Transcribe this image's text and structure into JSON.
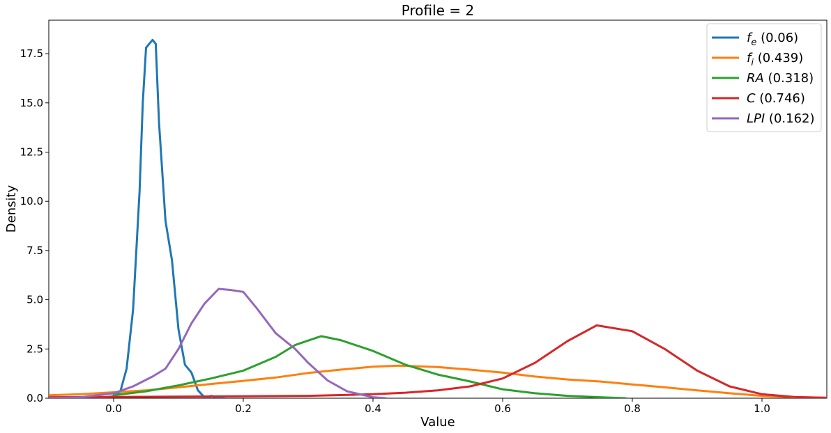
{
  "chart_data": {
    "type": "line",
    "title": "Profile = 2",
    "xlabel": "Value",
    "ylabel": "Density",
    "xlim": [
      -0.1,
      1.1
    ],
    "ylim": [
      0,
      19.2
    ],
    "x_ticks": [
      0.0,
      0.2,
      0.4,
      0.6,
      0.8,
      1.0
    ],
    "x_tick_labels": [
      "0.0",
      "0.2",
      "0.4",
      "0.6",
      "0.8",
      "1.0"
    ],
    "y_ticks": [
      0.0,
      2.5,
      5.0,
      7.5,
      10.0,
      12.5,
      15.0,
      17.5
    ],
    "y_tick_labels": [
      "0.0",
      "2.5",
      "5.0",
      "7.5",
      "10.0",
      "12.5",
      "15.0",
      "17.5"
    ],
    "grid": false,
    "legend_position": "top-right",
    "series": [
      {
        "name": "f_e (0.06)",
        "legend_var": "f",
        "legend_sub": "e",
        "legend_value": "(0.06)",
        "color": "#1f77b4",
        "points": [
          [
            -0.1,
            0
          ],
          [
            -0.02,
            0.02
          ],
          [
            0.0,
            0.1
          ],
          [
            0.01,
            0.3
          ],
          [
            0.02,
            1.5
          ],
          [
            0.03,
            4.5
          ],
          [
            0.04,
            10.5
          ],
          [
            0.045,
            15.0
          ],
          [
            0.05,
            17.8
          ],
          [
            0.055,
            18.0
          ],
          [
            0.06,
            18.2
          ],
          [
            0.065,
            18.0
          ],
          [
            0.07,
            14.0
          ],
          [
            0.08,
            9.0
          ],
          [
            0.09,
            7.0
          ],
          [
            0.1,
            3.5
          ],
          [
            0.11,
            1.7
          ],
          [
            0.12,
            1.3
          ],
          [
            0.13,
            0.4
          ],
          [
            0.14,
            0.05
          ],
          [
            0.145,
            0.0
          ],
          [
            0.15,
            0.12
          ],
          [
            0.16,
            0.02
          ],
          [
            0.17,
            0.0
          ]
        ]
      },
      {
        "name": "f_i (0.439)",
        "legend_var": "f",
        "legend_sub": "i",
        "legend_value": "(0.439)",
        "color": "#ff7f0e",
        "points": [
          [
            -0.1,
            0.15
          ],
          [
            -0.05,
            0.2
          ],
          [
            0.0,
            0.3
          ],
          [
            0.05,
            0.4
          ],
          [
            0.1,
            0.55
          ],
          [
            0.15,
            0.72
          ],
          [
            0.2,
            0.88
          ],
          [
            0.25,
            1.05
          ],
          [
            0.3,
            1.28
          ],
          [
            0.35,
            1.45
          ],
          [
            0.4,
            1.6
          ],
          [
            0.44,
            1.65
          ],
          [
            0.5,
            1.58
          ],
          [
            0.55,
            1.45
          ],
          [
            0.6,
            1.3
          ],
          [
            0.65,
            1.1
          ],
          [
            0.7,
            0.95
          ],
          [
            0.75,
            0.85
          ],
          [
            0.8,
            0.7
          ],
          [
            0.85,
            0.55
          ],
          [
            0.9,
            0.4
          ],
          [
            0.95,
            0.25
          ],
          [
            1.0,
            0.12
          ],
          [
            1.05,
            0.05
          ],
          [
            1.1,
            0.02
          ]
        ]
      },
      {
        "name": "RA (0.318)",
        "legend_var": "RA",
        "legend_sub": "",
        "legend_value": "(0.318)",
        "color": "#2ca02c",
        "points": [
          [
            0.0,
            0.15
          ],
          [
            0.05,
            0.35
          ],
          [
            0.1,
            0.65
          ],
          [
            0.15,
            1.0
          ],
          [
            0.2,
            1.4
          ],
          [
            0.25,
            2.1
          ],
          [
            0.28,
            2.7
          ],
          [
            0.32,
            3.15
          ],
          [
            0.35,
            2.95
          ],
          [
            0.4,
            2.4
          ],
          [
            0.45,
            1.7
          ],
          [
            0.5,
            1.2
          ],
          [
            0.55,
            0.85
          ],
          [
            0.6,
            0.45
          ],
          [
            0.65,
            0.25
          ],
          [
            0.7,
            0.12
          ],
          [
            0.75,
            0.05
          ],
          [
            0.79,
            0.0
          ]
        ]
      },
      {
        "name": "C (0.746)",
        "legend_var": "C",
        "legend_sub": "",
        "legend_value": "(0.746)",
        "color": "#d62728",
        "points": [
          [
            -0.1,
            0.05
          ],
          [
            0.0,
            0.06
          ],
          [
            0.1,
            0.08
          ],
          [
            0.2,
            0.1
          ],
          [
            0.3,
            0.12
          ],
          [
            0.4,
            0.2
          ],
          [
            0.45,
            0.28
          ],
          [
            0.5,
            0.4
          ],
          [
            0.55,
            0.6
          ],
          [
            0.6,
            1.0
          ],
          [
            0.65,
            1.8
          ],
          [
            0.7,
            2.9
          ],
          [
            0.745,
            3.7
          ],
          [
            0.8,
            3.4
          ],
          [
            0.85,
            2.5
          ],
          [
            0.9,
            1.4
          ],
          [
            0.95,
            0.6
          ],
          [
            1.0,
            0.2
          ],
          [
            1.05,
            0.06
          ],
          [
            1.1,
            0.02
          ]
        ]
      },
      {
        "name": "LPI (0.162)",
        "legend_var": "LPI",
        "legend_sub": "",
        "legend_value": "(0.162)",
        "color": "#9467bd",
        "points": [
          [
            -0.1,
            0.0
          ],
          [
            -0.05,
            0.05
          ],
          [
            0.0,
            0.25
          ],
          [
            0.03,
            0.6
          ],
          [
            0.06,
            1.1
          ],
          [
            0.08,
            1.5
          ],
          [
            0.1,
            2.5
          ],
          [
            0.12,
            3.8
          ],
          [
            0.14,
            4.8
          ],
          [
            0.162,
            5.55
          ],
          [
            0.18,
            5.5
          ],
          [
            0.2,
            5.4
          ],
          [
            0.22,
            4.6
          ],
          [
            0.25,
            3.3
          ],
          [
            0.28,
            2.5
          ],
          [
            0.3,
            1.8
          ],
          [
            0.33,
            0.9
          ],
          [
            0.36,
            0.35
          ],
          [
            0.4,
            0.05
          ],
          [
            0.42,
            0.0
          ]
        ]
      }
    ]
  }
}
